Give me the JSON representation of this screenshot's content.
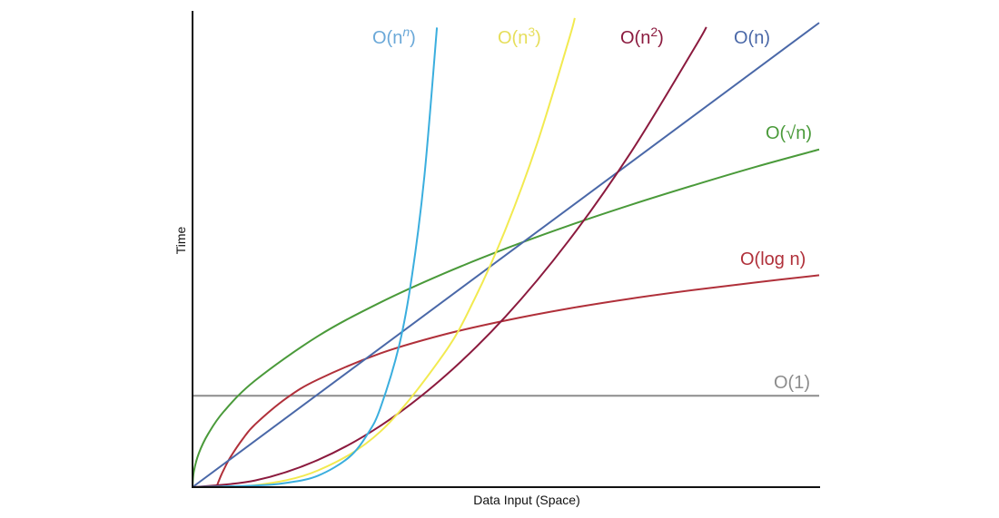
{
  "chart_data": {
    "type": "line",
    "title": "",
    "xlabel": "Data Input (Space)",
    "ylabel": "Time",
    "xlim": [
      0,
      100
    ],
    "ylim": [
      0,
      100
    ],
    "grid": false,
    "legend": "inline labels at curve ends",
    "series": [
      {
        "name": "O(1)",
        "label_base": "O(1)",
        "label_sup": "",
        "label_tail": "",
        "color": "#8c8c8c",
        "x": [
          0,
          100
        ],
        "y": [
          19.2,
          19.2
        ]
      },
      {
        "name": "O(log n)",
        "label_base": "O(log n)",
        "label_sup": "",
        "label_tail": "",
        "color": "#b0303a",
        "x": [
          3.8,
          4.5,
          5,
          6,
          8,
          10,
          15,
          20,
          30,
          40,
          50,
          60,
          70,
          80,
          90,
          100
        ],
        "y": [
          0,
          2.3,
          3.7,
          6.2,
          10.1,
          13.2,
          18.7,
          22.6,
          28.1,
          32.0,
          35.0,
          37.5,
          39.6,
          41.4,
          43.0,
          44.5
        ]
      },
      {
        "name": "O(√n)",
        "label_base": "O(√n)",
        "label_sup": "",
        "label_tail": "",
        "color": "#4a9a3a",
        "x": [
          0,
          0.2,
          1,
          2.5,
          5,
          10,
          20,
          30,
          40,
          50,
          60,
          70,
          80,
          90,
          100
        ],
        "y": [
          0,
          3.2,
          7.1,
          11.2,
          15.9,
          22.4,
          31.7,
          38.8,
          44.8,
          50.1,
          54.9,
          59.3,
          63.4,
          67.3,
          70.9
        ]
      },
      {
        "name": "O(n)",
        "label_base": "O(n)",
        "label_sup": "",
        "label_tail": "",
        "color": "#4a68a8",
        "x": [
          0,
          100
        ],
        "y": [
          0,
          97.5
        ]
      },
      {
        "name": "O(n²)",
        "label_base": "O(n",
        "label_sup": "2",
        "label_tail": ")",
        "color": "#8b1a3e",
        "x": [
          0,
          10,
          20,
          30,
          40,
          50,
          60,
          70,
          80,
          82
        ],
        "y": [
          0,
          1.4,
          5.7,
          12.9,
          23.0,
          35.9,
          51.7,
          70.4,
          92.0,
          96.6
        ]
      },
      {
        "name": "O(n³)",
        "label_base": "O(n",
        "label_sup": "3",
        "label_tail": ")",
        "color": "#f2ea50",
        "x": [
          0,
          10,
          20,
          30,
          40,
          45,
          50,
          55,
          60,
          61
        ],
        "y": [
          0,
          0.4,
          3.5,
          11.7,
          27.8,
          39.5,
          54.3,
          72.2,
          93.7,
          98.5
        ]
      },
      {
        "name": "O(nⁿ)",
        "label_base": "O(n",
        "label_sup": "n",
        "label_tail": ")",
        "color": "#3aaede",
        "x": [
          0,
          10,
          15,
          20,
          25,
          28,
          30,
          33,
          35,
          37,
          39
        ],
        "y": [
          0,
          0.34,
          0.9,
          2.4,
          6.3,
          11.3,
          16.7,
          29.9,
          44.2,
          65.3,
          96.5
        ]
      }
    ]
  }
}
